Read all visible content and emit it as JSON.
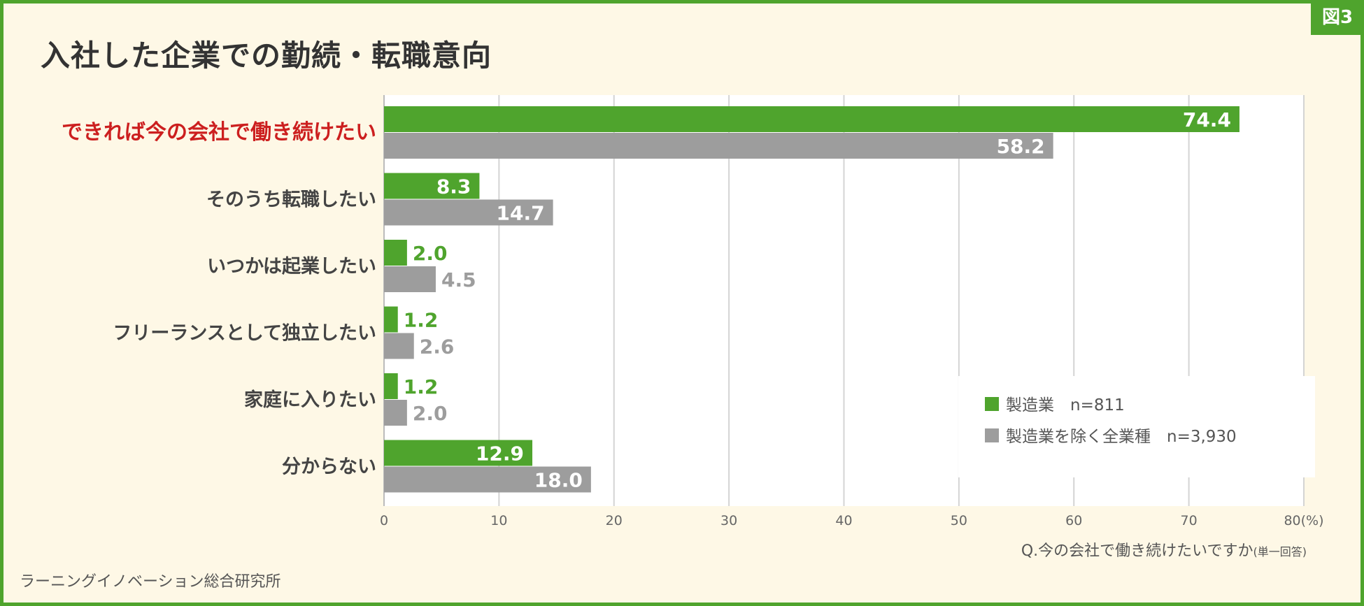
{
  "header": {
    "figure_label": "図3",
    "title": "入社した企業での勤続・転職意向"
  },
  "footer": {
    "source": "ラーニングイノベーション総合研究所",
    "question": "Q.今の会社で働き続けたいですか",
    "question_note": "(単一回答)"
  },
  "colors": {
    "manufacturing": "#4fa42d",
    "others": "#9d9d9d",
    "highlight": "#cc1f1f",
    "frame": "#4fa42d",
    "background": "#fef8e6"
  },
  "chart_data": {
    "type": "bar",
    "orientation": "horizontal",
    "categories": [
      "できれば今の会社で働き続けたい",
      "そのうち転職したい",
      "いつかは起業したい",
      "フリーランスとして独立したい",
      "家庭に入りたい",
      "分からない"
    ],
    "highlight_category": "できれば今の会社で働き続けたい",
    "series": [
      {
        "name": "製造業　n=811",
        "values": [
          74.4,
          8.3,
          2.0,
          1.2,
          1.2,
          12.9
        ]
      },
      {
        "name": "製造業を除く全業種　n=3,930",
        "values": [
          58.2,
          14.7,
          4.5,
          2.6,
          2.0,
          18.0
        ]
      }
    ],
    "x_ticks": [
      "0",
      "10",
      "20",
      "30",
      "40",
      "50",
      "60",
      "70",
      "80(%)"
    ],
    "xlim": [
      0,
      80
    ],
    "grid": "vertical",
    "legend_position": "bottom-right"
  }
}
